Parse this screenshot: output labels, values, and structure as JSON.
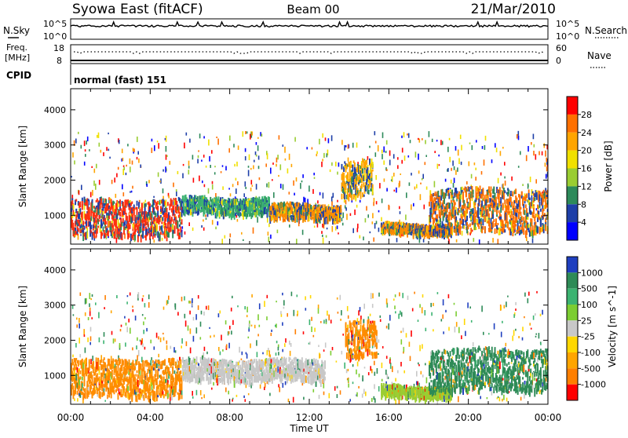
{
  "header": {
    "station": "Syowa East (fitACF)",
    "beam": "Beam 00",
    "date": "21/Mar/2010"
  },
  "top_panels": {
    "nsky_label": "N.Sky",
    "nsky_ticks": [
      "10^5",
      "10^0"
    ],
    "nsearch_label": "N.Search",
    "nsearch_ticks": [
      "10^5",
      "10^0"
    ],
    "freq_label": "Freq.",
    "freq_unit": "[MHz]",
    "freq_ticks": [
      "18",
      "8"
    ],
    "nave_label": "Nave",
    "nave_ticks": [
      "60",
      "0"
    ],
    "cpid_label": "CPID",
    "cpid_text": "normal (fast) 151"
  },
  "chart_data": [
    {
      "type": "heatmap",
      "quantity": "Power",
      "ylabel": "Slant Range [km]",
      "xlabel": "Time UT",
      "yticks": [
        1000,
        2000,
        3000,
        4000
      ],
      "ylim": [
        180,
        4600
      ],
      "colorbar_label": "Power [dB]",
      "colorbar_ticks": [
        "4",
        "8",
        "12",
        "16",
        "20",
        "24",
        "28"
      ],
      "colorbar_colors": [
        "#0000ff",
        "#1e3fa8",
        "#2d8a5a",
        "#9acd32",
        "#f0e000",
        "#ffa500",
        "#ff7000",
        "#ff0000"
      ],
      "bands": [
        {
          "t0": 0.0,
          "t1": 5.6,
          "r0": 450,
          "r1": 1500,
          "core": "#ff3010"
        },
        {
          "t0": 5.6,
          "t1": 10.0,
          "r0": 1100,
          "r1": 1550,
          "core": "#3cb371"
        },
        {
          "t0": 10.0,
          "t1": 13.6,
          "r0": 950,
          "r1": 1350,
          "core": "#ff8c00"
        },
        {
          "t0": 13.6,
          "t1": 15.2,
          "r0": 1600,
          "r1": 2600,
          "core": "#ffa500"
        },
        {
          "t0": 15.6,
          "t1": 19.2,
          "r0": 550,
          "r1": 800,
          "core": "#ff8c00"
        },
        {
          "t0": 18.0,
          "t1": 24.0,
          "r0": 600,
          "r1": 1800,
          "core": "#ff7000"
        }
      ]
    },
    {
      "type": "heatmap",
      "quantity": "Velocity",
      "ylabel": "Slant Range [km]",
      "xlabel": "Time UT",
      "yticks": [
        1000,
        2000,
        3000,
        4000
      ],
      "ylim": [
        180,
        4600
      ],
      "xticks": [
        "00:00",
        "04:00",
        "08:00",
        "12:00",
        "16:00",
        "20:00",
        "00:00"
      ],
      "xlim": [
        0,
        24
      ],
      "colorbar_label": "Velocity [m s^-1]",
      "colorbar_ticks": [
        "1000",
        "500",
        "100",
        "25",
        "-25",
        "-100",
        "-500",
        "-1000"
      ],
      "colorbar_colors": [
        "#1f3fbf",
        "#2e8b57",
        "#3cb371",
        "#7ccd32",
        "#c8c8c8",
        "#ffd700",
        "#ffa500",
        "#ff7f00",
        "#ff0000"
      ],
      "bands": [
        {
          "t0": 0.0,
          "t1": 5.6,
          "r0": 450,
          "r1": 1500,
          "core": "#ff8c00"
        },
        {
          "t0": 5.6,
          "t1": 12.8,
          "r0": 900,
          "r1": 1500,
          "core": "#c8c8c8"
        },
        {
          "t0": 13.8,
          "t1": 15.4,
          "r0": 1600,
          "r1": 2600,
          "core": "#ff8c00"
        },
        {
          "t0": 15.6,
          "t1": 19.2,
          "r0": 450,
          "r1": 750,
          "core": "#9acd32"
        },
        {
          "t0": 18.0,
          "t1": 24.0,
          "r0": 600,
          "r1": 1800,
          "core": "#2e8b57"
        }
      ]
    }
  ]
}
